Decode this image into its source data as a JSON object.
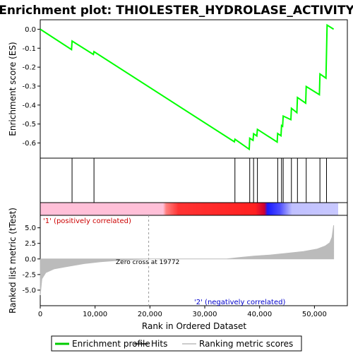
{
  "title": "Enrichment plot: THIOLESTER_HYDROLASE_ACTIVITY",
  "labels": {
    "top_ylabel": "Enrichment score (ES)",
    "bottom_ylabel": "Ranked list metric (tTest)",
    "xlabel": "Rank in Ordered Dataset",
    "zero_cross": "Zero cross at 19772",
    "positive": "'1' (positively correlated)",
    "negative": "'2' (negatively correlated)"
  },
  "legend": {
    "items": [
      {
        "label": "Enrichment profile",
        "color": "#00cc00",
        "type": "line"
      },
      {
        "label": "Hits",
        "color": "#000000",
        "type": "line"
      },
      {
        "label": "Ranking metric scores",
        "color": "#bbbbbb",
        "type": "line"
      }
    ]
  },
  "colors": {
    "es_line": "#00ff00",
    "hits": "#000000",
    "metric_fill": "#bbbbbb",
    "zero_line": "#999999",
    "positive_band": "#ff0000",
    "negative_band": "#0000ff"
  },
  "chart_data": {
    "type": "line",
    "x_range": [
      0,
      56000
    ],
    "x_ticks": [
      "0",
      "10,000",
      "20,000",
      "30,000",
      "40,000",
      "50,000"
    ],
    "x_tick_values": [
      0,
      10000,
      20000,
      30000,
      40000,
      50000
    ],
    "es_range": [
      -0.68,
      0.05
    ],
    "es_ticks": [
      "0.0",
      "-0.1",
      "-0.2",
      "-0.3",
      "-0.4",
      "-0.5",
      "-0.6"
    ],
    "es_tick_values": [
      0,
      -0.1,
      -0.2,
      -0.3,
      -0.4,
      -0.5,
      -0.6
    ],
    "metric_range": [
      -7.5,
      7.0
    ],
    "metric_ticks": [
      "5.0",
      "2.5",
      "0.0",
      "-2.5",
      "-5.0"
    ],
    "metric_tick_values": [
      5,
      2.5,
      0,
      -2.5,
      -5
    ],
    "zero_cross": 19772,
    "hits": [
      5800,
      9800,
      35500,
      38200,
      38900,
      39600,
      43300,
      44000,
      44300,
      45800,
      46900,
      48500,
      51000,
      52200
    ],
    "es_profile": [
      [
        0,
        0.0
      ],
      [
        5700,
        -0.107
      ],
      [
        5800,
        -0.062
      ],
      [
        9700,
        -0.133
      ],
      [
        9800,
        -0.118
      ],
      [
        35400,
        -0.594
      ],
      [
        35500,
        -0.58
      ],
      [
        38100,
        -0.633
      ],
      [
        38200,
        -0.575
      ],
      [
        38800,
        -0.586
      ],
      [
        38900,
        -0.551
      ],
      [
        39500,
        -0.563
      ],
      [
        39600,
        -0.528
      ],
      [
        43200,
        -0.595
      ],
      [
        43300,
        -0.55
      ],
      [
        43900,
        -0.562
      ],
      [
        44000,
        -0.508
      ],
      [
        44200,
        -0.512
      ],
      [
        44300,
        -0.458
      ],
      [
        45700,
        -0.477
      ],
      [
        45800,
        -0.417
      ],
      [
        46800,
        -0.44
      ],
      [
        46900,
        -0.36
      ],
      [
        48400,
        -0.39
      ],
      [
        48500,
        -0.302
      ],
      [
        50900,
        -0.345
      ],
      [
        51000,
        -0.236
      ],
      [
        52100,
        -0.258
      ],
      [
        52200,
        -0.12
      ],
      [
        52300,
        0.022
      ],
      [
        53500,
        0.0
      ]
    ],
    "metric_profile": [
      [
        0,
        -5.8
      ],
      [
        300,
        -3.2
      ],
      [
        1000,
        -2.2
      ],
      [
        2500,
        -1.6
      ],
      [
        5000,
        -1.2
      ],
      [
        8000,
        -0.75
      ],
      [
        11000,
        -0.45
      ],
      [
        14000,
        -0.25
      ],
      [
        17000,
        -0.1
      ],
      [
        19772,
        0.0
      ],
      [
        34000,
        0.0
      ],
      [
        36000,
        0.2
      ],
      [
        39000,
        0.45
      ],
      [
        42000,
        0.65
      ],
      [
        45000,
        0.9
      ],
      [
        48000,
        1.2
      ],
      [
        50500,
        1.6
      ],
      [
        52000,
        2.1
      ],
      [
        52800,
        2.6
      ],
      [
        53200,
        3.5
      ],
      [
        53500,
        5.4
      ]
    ]
  }
}
